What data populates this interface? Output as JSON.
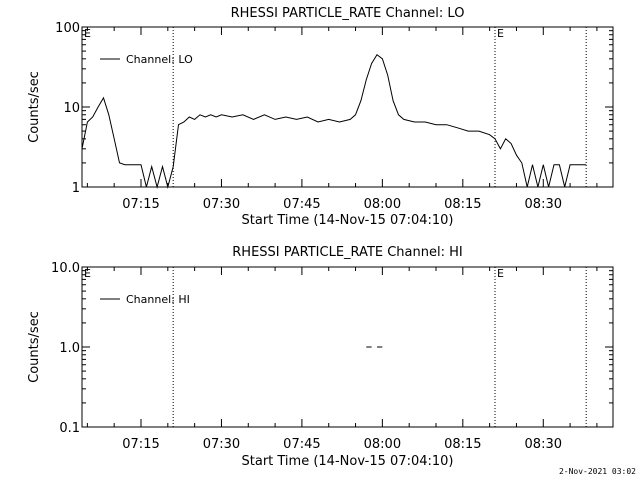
{
  "footer": {
    "timestamp": "2-Nov-2021 03:02"
  },
  "chart_data": [
    {
      "type": "line",
      "title": "RHESSI PARTICLE_RATE Channel: LO",
      "xlabel": "Start Time (14-Nov-15 07:04:10)",
      "ylabel": "Counts/sec",
      "yscale": "log",
      "ylim": [
        1,
        100
      ],
      "xlim": [
        "07:04",
        "08:43"
      ],
      "yticks": [
        "1",
        "10",
        "100"
      ],
      "xticks": [
        "07:15",
        "07:30",
        "07:45",
        "08:00",
        "08:15",
        "08:30"
      ],
      "legend": "Channel: LO",
      "legend_position": "top-left",
      "markers": [
        {
          "time": "07:21",
          "label": ""
        },
        {
          "time": "08:21",
          "label": "E"
        },
        {
          "time": "08:38",
          "label": ""
        }
      ],
      "corner_label": "E",
      "series": [
        {
          "name": "Channel: LO",
          "x": [
            "07:04",
            "07:05",
            "07:06",
            "07:07",
            "07:08",
            "07:09",
            "07:10",
            "07:11",
            "07:12",
            "07:13",
            "07:14",
            "07:15",
            "07:16",
            "07:17",
            "07:18",
            "07:19",
            "07:20",
            "07:21",
            "07:22",
            "07:23",
            "07:24",
            "07:25",
            "07:26",
            "07:27",
            "07:28",
            "07:29",
            "07:30",
            "07:32",
            "07:34",
            "07:36",
            "07:38",
            "07:40",
            "07:42",
            "07:44",
            "07:46",
            "07:48",
            "07:50",
            "07:52",
            "07:54",
            "07:55",
            "07:56",
            "07:57",
            "07:58",
            "07:59",
            "08:00",
            "08:01",
            "08:02",
            "08:03",
            "08:04",
            "08:06",
            "08:08",
            "08:10",
            "08:12",
            "08:14",
            "08:16",
            "08:18",
            "08:20",
            "08:21",
            "08:22",
            "08:23",
            "08:24",
            "08:25",
            "08:26",
            "08:27",
            "08:28",
            "08:29",
            "08:30",
            "08:31",
            "08:32",
            "08:33",
            "08:34",
            "08:35",
            "08:36",
            "08:37",
            "08:38"
          ],
          "y": [
            3.0,
            6.5,
            7.5,
            10.0,
            13.0,
            8.0,
            4.0,
            2.0,
            1.9,
            1.9,
            1.9,
            1.9,
            1.0,
            1.8,
            1.0,
            1.8,
            1.0,
            1.8,
            6.0,
            6.5,
            7.5,
            7.0,
            8.0,
            7.5,
            8.0,
            7.5,
            8.0,
            7.5,
            8.0,
            7.0,
            8.0,
            7.0,
            7.5,
            7.0,
            7.5,
            6.5,
            7.0,
            6.5,
            7.0,
            8.0,
            12.0,
            22.0,
            35.0,
            45.0,
            40.0,
            25.0,
            12.0,
            8.0,
            7.0,
            6.5,
            6.5,
            6.0,
            6.0,
            5.5,
            5.0,
            5.0,
            4.5,
            4.0,
            3.0,
            4.0,
            3.5,
            2.5,
            2.0,
            1.0,
            1.9,
            1.0,
            1.9,
            1.0,
            1.9,
            1.9,
            1.0,
            1.9,
            1.9,
            1.9,
            1.9
          ]
        }
      ]
    },
    {
      "type": "line",
      "title": "RHESSI PARTICLE_RATE Channel: HI",
      "xlabel": "Start Time (14-Nov-15 07:04:10)",
      "ylabel": "Counts/sec",
      "yscale": "log",
      "ylim": [
        0.1,
        10
      ],
      "xlim": [
        "07:04",
        "08:43"
      ],
      "yticks": [
        "0.1",
        "1.0",
        "10.0"
      ],
      "xticks": [
        "07:15",
        "07:30",
        "07:45",
        "08:00",
        "08:15",
        "08:30"
      ],
      "legend": "Channel: HI",
      "legend_position": "top-left",
      "markers": [
        {
          "time": "07:21",
          "label": ""
        },
        {
          "time": "08:21",
          "label": "E"
        },
        {
          "time": "08:38",
          "label": ""
        }
      ],
      "corner_label": "E",
      "series": [
        {
          "name": "Channel: HI",
          "segments": [
            [
              "07:57",
              "07:58"
            ],
            [
              "07:59",
              "08:00"
            ]
          ],
          "y": 1.0
        }
      ]
    }
  ]
}
